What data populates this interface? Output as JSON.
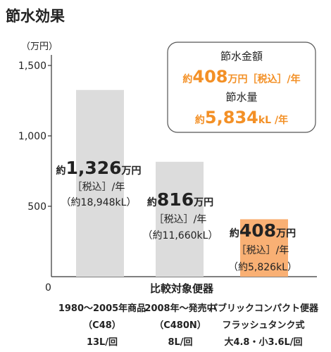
{
  "header": {
    "title": "節水効果"
  },
  "chart_data": {
    "type": "bar",
    "unit_label": "（万円）",
    "yticks": [
      "0",
      "500",
      "1,000",
      "1,500"
    ],
    "ylim": [
      0,
      1500
    ],
    "xlabel": "比較対象便器",
    "values": [
      1326,
      816,
      408
    ],
    "colors": [
      "#dcdcdc",
      "#dcdcdc",
      "#f9b074"
    ],
    "accent_color": "#f39026",
    "categories": [
      {
        "lines": [
          "1980〜2005年商品",
          "（C48）",
          "13L/回"
        ]
      },
      {
        "lines": [
          "2008年〜発売中",
          "（C480N）",
          "8L/回"
        ]
      },
      {
        "lines": [
          "パブリックコンパクト便器",
          "フラッシュタンク式",
          "大4.8・小3.6L/回"
        ]
      }
    ],
    "bar_labels": [
      {
        "prefix": "約",
        "value": "1,326",
        "suffix": "万円",
        "tax": "［税込］/年",
        "water": "（約18,948kL）"
      },
      {
        "prefix": "約",
        "value": "816",
        "suffix": "万円",
        "tax": "［税込］/年",
        "water": "（約11,660kL）"
      },
      {
        "prefix": "約",
        "value": "408",
        "suffix": "万円",
        "tax": "［税込］/年",
        "water": "（約5,826kL）"
      }
    ]
  },
  "summary": {
    "label_money": "節水金額",
    "money_prefix": "約",
    "money_value": "408",
    "money_suffix": "万円［税込］/年",
    "label_water": "節水量",
    "water_prefix": "約",
    "water_value": "5,834",
    "water_suffix": "kL /年"
  }
}
